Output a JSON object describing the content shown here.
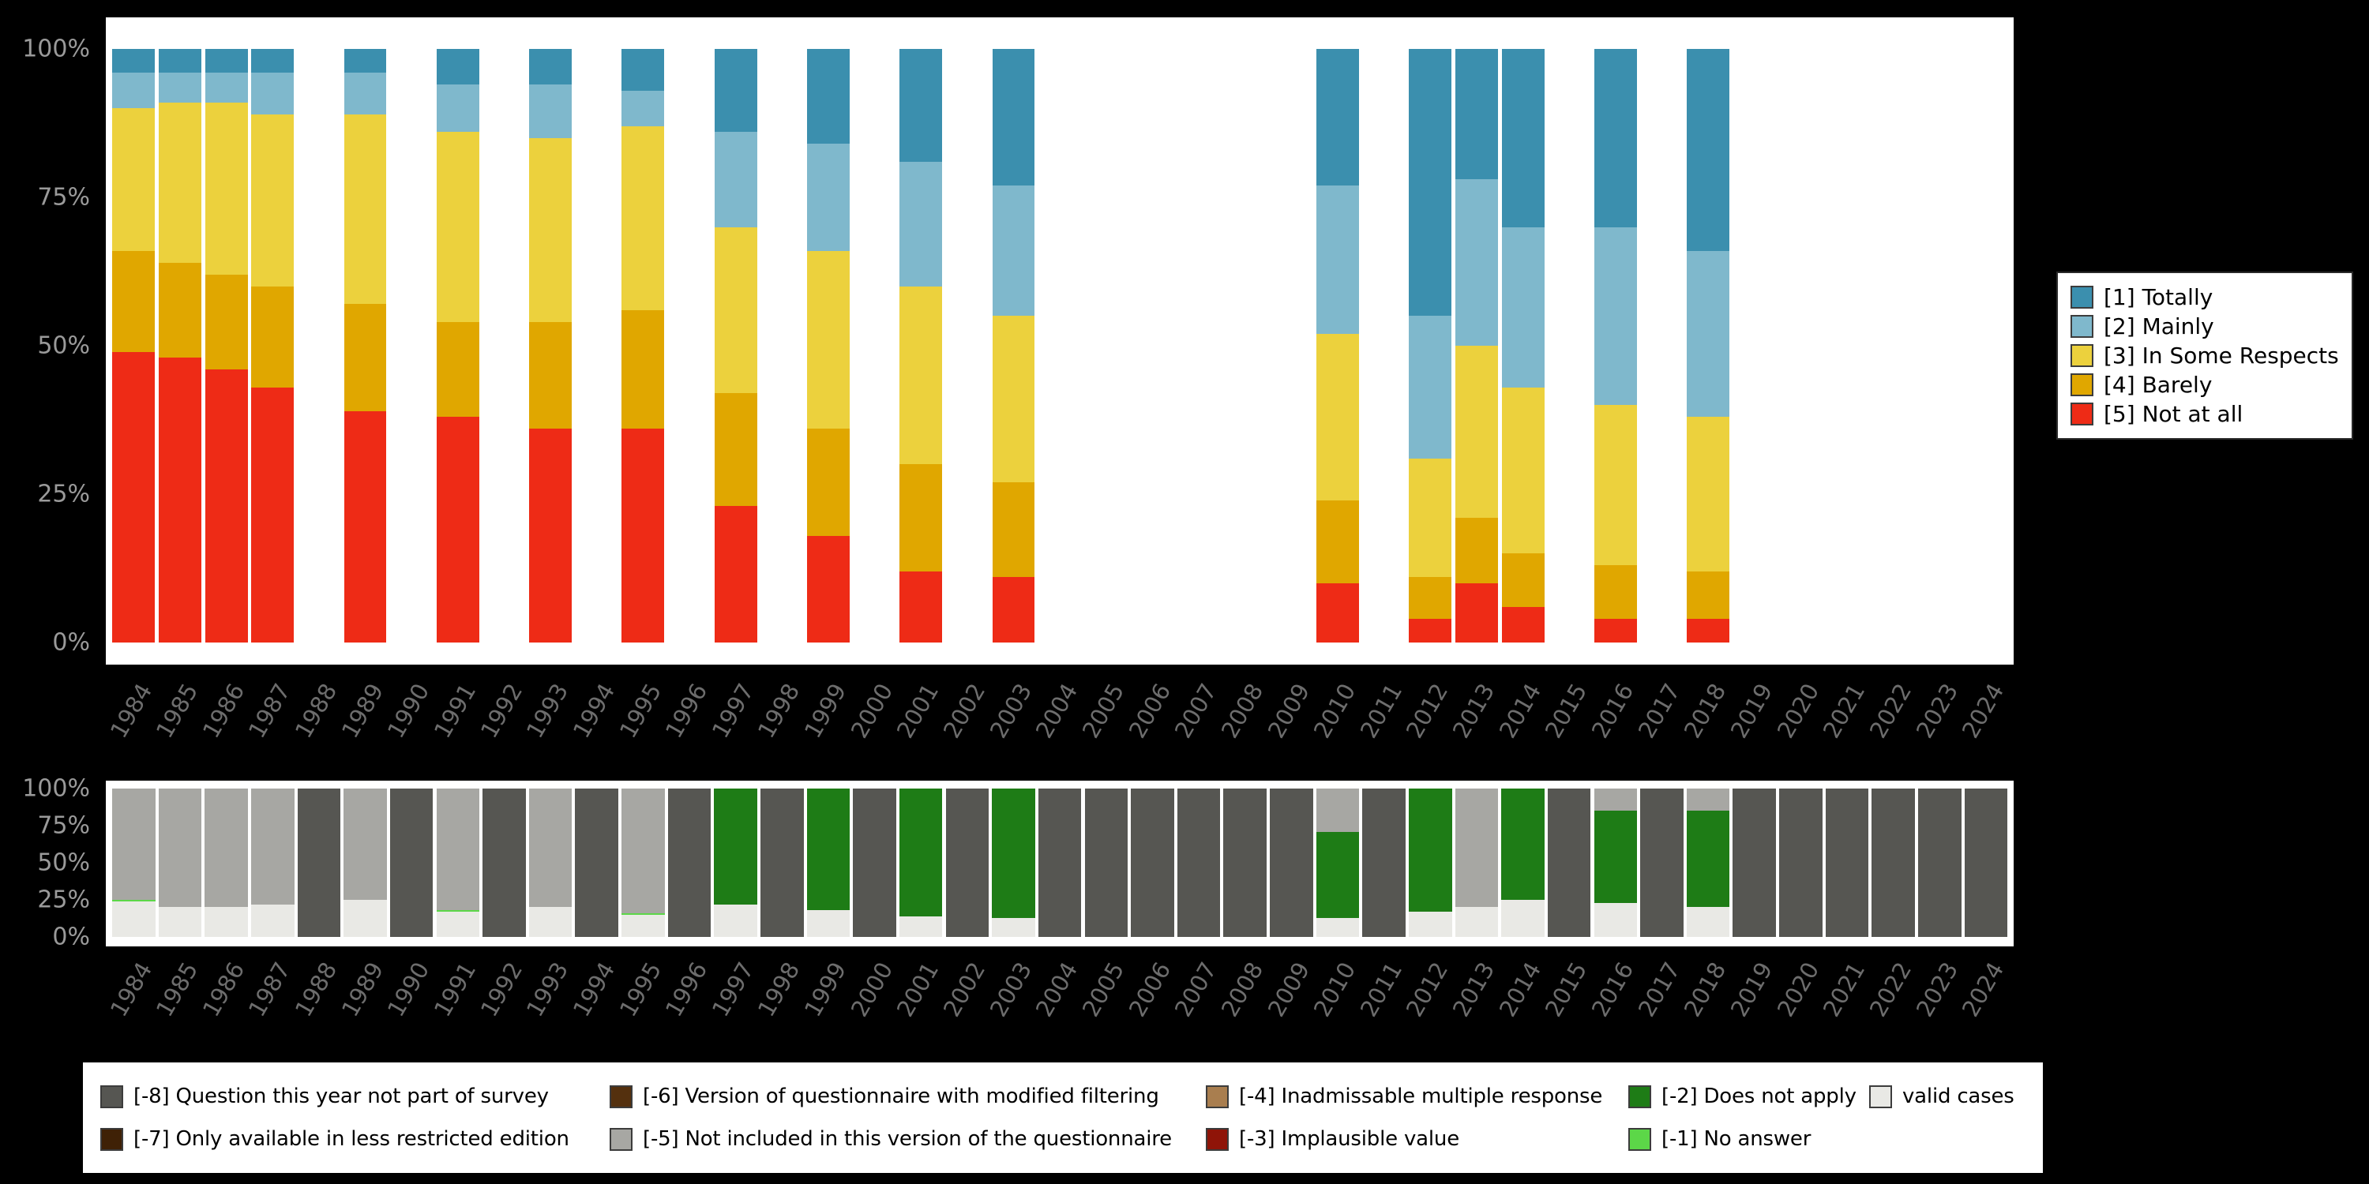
{
  "axes": {
    "yticks": [
      "0%",
      "25%",
      "50%",
      "75%",
      "100%"
    ]
  },
  "top_legend": {
    "items": [
      "totally",
      "mainly",
      "in_some_respects",
      "barely",
      "not_at_all"
    ]
  },
  "bottom_legend": {
    "columns": [
      [
        "not_part",
        "less_restricted"
      ],
      [
        "modified_filtering",
        "not_included"
      ],
      [
        "inadmissable",
        "implausible"
      ],
      [
        "does_not_apply",
        "no_answer"
      ],
      [
        "valid"
      ]
    ]
  },
  "chart_data": [
    {
      "type": "bar",
      "subtype": "stacked-percent",
      "title": "",
      "xlabel": "",
      "ylabel": "",
      "ylim": [
        0,
        100
      ],
      "yticks": [
        "0%",
        "25%",
        "50%",
        "75%",
        "100%"
      ],
      "legend_position": "right",
      "grid": false,
      "x": [
        1984,
        1985,
        1986,
        1987,
        1988,
        1989,
        1990,
        1991,
        1992,
        1993,
        1994,
        1995,
        1996,
        1997,
        1998,
        1999,
        2000,
        2001,
        2002,
        2003,
        2004,
        2005,
        2006,
        2007,
        2008,
        2009,
        2010,
        2011,
        2012,
        2013,
        2014,
        2015,
        2016,
        2017,
        2018,
        2019,
        2020,
        2021,
        2022,
        2023,
        2024
      ],
      "stack_order": [
        "not_at_all",
        "barely",
        "in_some_respects",
        "mainly",
        "totally"
      ],
      "series_meta": {
        "totally": {
          "label": "[1] Totally",
          "color": "#3b8fae"
        },
        "mainly": {
          "label": "[2] Mainly",
          "color": "#7fb8cc"
        },
        "in_some_respects": {
          "label": "[3] In Some Respects",
          "color": "#ecd13d"
        },
        "barely": {
          "label": "[4] Barely",
          "color": "#e0a700"
        },
        "not_at_all": {
          "label": "[5] Not at all",
          "color": "#ee2b16"
        }
      },
      "bars": {
        "1984": {
          "not_at_all": 49,
          "barely": 17,
          "in_some_respects": 24,
          "mainly": 6,
          "totally": 4
        },
        "1985": {
          "not_at_all": 48,
          "barely": 16,
          "in_some_respects": 27,
          "mainly": 5,
          "totally": 4
        },
        "1986": {
          "not_at_all": 46,
          "barely": 16,
          "in_some_respects": 29,
          "mainly": 5,
          "totally": 4
        },
        "1987": {
          "not_at_all": 43,
          "barely": 17,
          "in_some_respects": 29,
          "mainly": 7,
          "totally": 4
        },
        "1989": {
          "not_at_all": 39,
          "barely": 18,
          "in_some_respects": 32,
          "mainly": 7,
          "totally": 4
        },
        "1991": {
          "not_at_all": 38,
          "barely": 16,
          "in_some_respects": 32,
          "mainly": 8,
          "totally": 6
        },
        "1993": {
          "not_at_all": 36,
          "barely": 18,
          "in_some_respects": 31,
          "mainly": 9,
          "totally": 6
        },
        "1995": {
          "not_at_all": 36,
          "barely": 20,
          "in_some_respects": 31,
          "mainly": 6,
          "totally": 7
        },
        "1997": {
          "not_at_all": 23,
          "barely": 19,
          "in_some_respects": 28,
          "mainly": 16,
          "totally": 14
        },
        "1999": {
          "not_at_all": 18,
          "barely": 18,
          "in_some_respects": 30,
          "mainly": 18,
          "totally": 16
        },
        "2001": {
          "not_at_all": 12,
          "barely": 18,
          "in_some_respects": 30,
          "mainly": 21,
          "totally": 19
        },
        "2003": {
          "not_at_all": 11,
          "barely": 16,
          "in_some_respects": 28,
          "mainly": 22,
          "totally": 23
        },
        "2010": {
          "not_at_all": 10,
          "barely": 14,
          "in_some_respects": 28,
          "mainly": 25,
          "totally": 23
        },
        "2012": {
          "not_at_all": 4,
          "barely": 7,
          "in_some_respects": 20,
          "mainly": 24,
          "totally": 45
        },
        "2013": {
          "not_at_all": 10,
          "barely": 11,
          "in_some_respects": 29,
          "mainly": 28,
          "totally": 22
        },
        "2014": {
          "not_at_all": 6,
          "barely": 9,
          "in_some_respects": 28,
          "mainly": 27,
          "totally": 30
        },
        "2016": {
          "not_at_all": 4,
          "barely": 9,
          "in_some_respects": 27,
          "mainly": 30,
          "totally": 30
        },
        "2018": {
          "not_at_all": 4,
          "barely": 8,
          "in_some_respects": 26,
          "mainly": 28,
          "totally": 34
        }
      }
    },
    {
      "type": "bar",
      "subtype": "stacked-percent",
      "title": "",
      "xlabel": "",
      "ylabel": "",
      "ylim": [
        0,
        100
      ],
      "yticks": [
        "0%",
        "25%",
        "50%",
        "75%",
        "100%"
      ],
      "legend_position": "bottom",
      "grid": false,
      "x": [
        1984,
        1985,
        1986,
        1987,
        1988,
        1989,
        1990,
        1991,
        1992,
        1993,
        1994,
        1995,
        1996,
        1997,
        1998,
        1999,
        2000,
        2001,
        2002,
        2003,
        2004,
        2005,
        2006,
        2007,
        2008,
        2009,
        2010,
        2011,
        2012,
        2013,
        2014,
        2015,
        2016,
        2017,
        2018,
        2019,
        2020,
        2021,
        2022,
        2023,
        2024
      ],
      "stack_order": [
        "valid",
        "no_answer",
        "does_not_apply",
        "implausible",
        "inadmissable",
        "not_included",
        "modified_filtering",
        "less_restricted",
        "not_part"
      ],
      "series_meta": {
        "not_part": {
          "label": "[-8] Question this year not part of survey",
          "color": "#565652"
        },
        "less_restricted": {
          "label": "[-7] Only available in less restricted edition",
          "color": "#3f2106"
        },
        "modified_filtering": {
          "label": "[-6] Version of questionnaire with modified filtering",
          "color": "#54300e"
        },
        "not_included": {
          "label": "[-5] Not included in this version of the questionnaire",
          "color": "#a7a7a3"
        },
        "inadmissable": {
          "label": "[-4] Inadmissable multiple response",
          "color": "#a97e4f"
        },
        "implausible": {
          "label": "[-3] Implausible value",
          "color": "#8f1408"
        },
        "does_not_apply": {
          "label": "[-2] Does not apply",
          "color": "#1e7c16"
        },
        "no_answer": {
          "label": "[-1] No answer",
          "color": "#5cd748"
        },
        "valid": {
          "label": "valid cases",
          "color": "#e9e9e5"
        }
      },
      "bars": {
        "1984": {
          "valid": 24,
          "no_answer": 1,
          "not_included": 75
        },
        "1985": {
          "valid": 20,
          "not_included": 80
        },
        "1986": {
          "valid": 20,
          "not_included": 80
        },
        "1987": {
          "valid": 22,
          "not_included": 78
        },
        "1988": {
          "not_part": 100
        },
        "1989": {
          "valid": 25,
          "not_included": 75
        },
        "1990": {
          "not_part": 100
        },
        "1991": {
          "valid": 17,
          "no_answer": 1,
          "not_included": 82
        },
        "1992": {
          "not_part": 100
        },
        "1993": {
          "valid": 20,
          "not_included": 80
        },
        "1994": {
          "not_part": 100
        },
        "1995": {
          "valid": 15,
          "no_answer": 1,
          "not_included": 84
        },
        "1996": {
          "not_part": 100
        },
        "1997": {
          "valid": 22,
          "does_not_apply": 78
        },
        "1998": {
          "not_part": 100
        },
        "1999": {
          "valid": 18,
          "does_not_apply": 82
        },
        "2000": {
          "not_part": 100
        },
        "2001": {
          "valid": 14,
          "does_not_apply": 86
        },
        "2002": {
          "not_part": 100
        },
        "2003": {
          "valid": 13,
          "does_not_apply": 87
        },
        "2004": {
          "not_part": 100
        },
        "2005": {
          "not_part": 100
        },
        "2006": {
          "not_part": 100
        },
        "2007": {
          "not_part": 100
        },
        "2008": {
          "not_part": 100
        },
        "2009": {
          "not_part": 100
        },
        "2010": {
          "valid": 13,
          "does_not_apply": 58,
          "not_included": 29
        },
        "2011": {
          "not_part": 100
        },
        "2012": {
          "valid": 17,
          "does_not_apply": 83
        },
        "2013": {
          "valid": 20,
          "not_included": 80
        },
        "2014": {
          "valid": 25,
          "does_not_apply": 75
        },
        "2015": {
          "not_part": 100
        },
        "2016": {
          "valid": 23,
          "does_not_apply": 62,
          "not_included": 15
        },
        "2017": {
          "not_part": 100
        },
        "2018": {
          "valid": 20,
          "does_not_apply": 65,
          "not_included": 15
        },
        "2019": {
          "not_part": 100
        },
        "2020": {
          "not_part": 100
        },
        "2021": {
          "not_part": 100
        },
        "2022": {
          "not_part": 100
        },
        "2023": {
          "not_part": 100
        },
        "2024": {
          "not_part": 100
        }
      }
    }
  ]
}
